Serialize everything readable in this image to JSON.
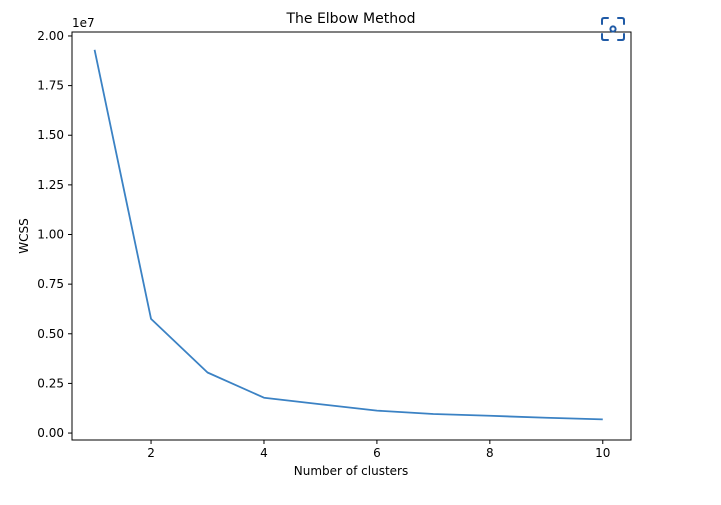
{
  "chart_data": {
    "type": "line",
    "title": "The Elbow Method",
    "xlabel": "Number of clusters",
    "ylabel": "WCSS",
    "y_offset_label": "1e7",
    "x": [
      1,
      2,
      3,
      4,
      5,
      6,
      7,
      8,
      9,
      10
    ],
    "series": [
      {
        "values": [
          19300000,
          5750000,
          3050000,
          1780000,
          1450000,
          1130000,
          960000,
          870000,
          770000,
          690000
        ]
      }
    ],
    "xlim": [
      0.6,
      10.5
    ],
    "ylim": [
      -350000,
      20200000
    ],
    "xticks": [
      2,
      4,
      6,
      8,
      10
    ],
    "xtick_labels": [
      "2",
      "4",
      "6",
      "8",
      "10"
    ],
    "yticks": [
      0,
      2500000,
      5000000,
      7500000,
      10000000,
      12500000,
      15000000,
      17500000,
      20000000
    ],
    "ytick_labels": [
      "0.00",
      "0.25",
      "0.50",
      "0.75",
      "1.00",
      "1.25",
      "1.50",
      "1.75",
      "2.00"
    ],
    "grid": false,
    "line_color": "#3b82c4"
  },
  "focus_button": {
    "icon": "focus-scan-icon",
    "color": "#1f5aa6"
  }
}
